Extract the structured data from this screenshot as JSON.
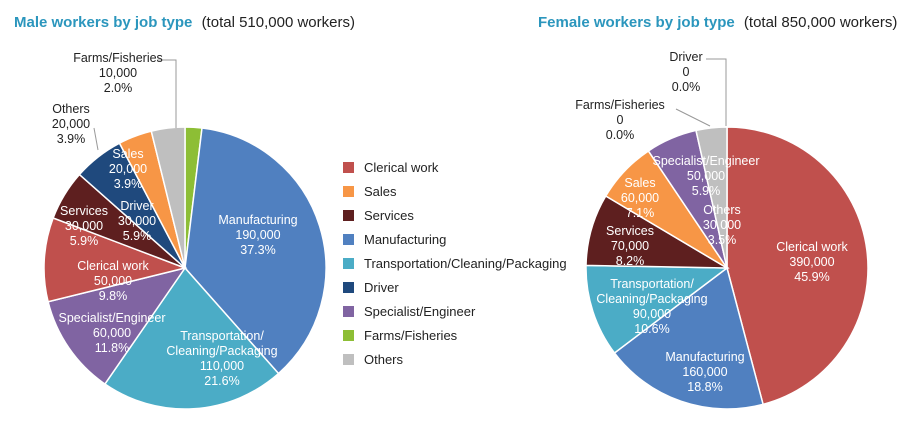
{
  "chart_data": [
    {
      "type": "pie",
      "title_accent": "Male workers by job type",
      "title_rest": "(total 510,000 workers)",
      "slices": [
        {
          "name": "Farms/Fisheries",
          "value_label": "10,000",
          "pct_label": "2.0%",
          "value": 10000,
          "color": "#8dbe35"
        },
        {
          "name": "Manufacturing",
          "value_label": "190,000",
          "pct_label": "37.3%",
          "value": 190000,
          "color": "#5080c0"
        },
        {
          "name": "Transportation/ Cleaning/Packaging",
          "value_label": "110,000",
          "pct_label": "21.6%",
          "value": 110000,
          "color": "#4bacc6"
        },
        {
          "name": "Specialist/Engineer",
          "value_label": "60,000",
          "pct_label": "11.8%",
          "value": 60000,
          "color": "#8064a2"
        },
        {
          "name": "Clerical work",
          "value_label": "50,000",
          "pct_label": "9.8%",
          "value": 50000,
          "color": "#c0504d"
        },
        {
          "name": "Services",
          "value_label": "30,000",
          "pct_label": "5.9%",
          "value": 30000,
          "color": "#5e1f1f"
        },
        {
          "name": "Driver",
          "value_label": "30,000",
          "pct_label": "5.9%",
          "value": 30000,
          "color": "#1f497d"
        },
        {
          "name": "Sales",
          "value_label": "20,000",
          "pct_label": "3.9%",
          "value": 20000,
          "color": "#f79646"
        },
        {
          "name": "Others",
          "value_label": "20,000",
          "pct_label": "3.9%",
          "value": 20000,
          "color": "#bfbfbf"
        }
      ]
    },
    {
      "type": "pie",
      "title_accent": "Female workers by job type",
      "title_rest": "(total 850,000 workers)",
      "slices": [
        {
          "name": "Driver",
          "value_label": "0",
          "pct_label": "0.0%",
          "value": 0,
          "color": "#1f497d"
        },
        {
          "name": "Clerical work",
          "value_label": "390,000",
          "pct_label": "45.9%",
          "value": 390000,
          "color": "#c0504d"
        },
        {
          "name": "Manufacturing",
          "value_label": "160,000",
          "pct_label": "18.8%",
          "value": 160000,
          "color": "#5080c0"
        },
        {
          "name": "Transportation/ Cleaning/Packaging",
          "value_label": "90,000",
          "pct_label": "10.6%",
          "value": 90000,
          "color": "#4bacc6"
        },
        {
          "name": "Services",
          "value_label": "70,000",
          "pct_label": "8.2%",
          "value": 70000,
          "color": "#5e1f1f"
        },
        {
          "name": "Sales",
          "value_label": "60,000",
          "pct_label": "7.1%",
          "value": 60000,
          "color": "#f79646"
        },
        {
          "name": "Specialist/Engineer",
          "value_label": "50,000",
          "pct_label": "5.9%",
          "value": 50000,
          "color": "#8064a2"
        },
        {
          "name": "Others",
          "value_label": "30,000",
          "pct_label": "3.5%",
          "value": 30000,
          "color": "#bfbfbf"
        },
        {
          "name": "Farms/Fisheries",
          "value_label": "0",
          "pct_label": "0.0%",
          "value": 0,
          "color": "#8dbe35"
        }
      ]
    }
  ],
  "legend": {
    "placement": "center",
    "items": [
      {
        "label": "Clerical work",
        "color": "#c0504d"
      },
      {
        "label": "Sales",
        "color": "#f79646"
      },
      {
        "label": "Services",
        "color": "#5e1f1f"
      },
      {
        "label": "Manufacturing",
        "color": "#5080c0"
      },
      {
        "label": "Transportation/Cleaning/Packaging",
        "color": "#4bacc6"
      },
      {
        "label": "Driver",
        "color": "#1f497d"
      },
      {
        "label": "Specialist/Engineer",
        "color": "#8064a2"
      },
      {
        "label": "Farms/Fisheries",
        "color": "#8dbe35"
      },
      {
        "label": "Others",
        "color": "#bfbfbf"
      }
    ]
  }
}
